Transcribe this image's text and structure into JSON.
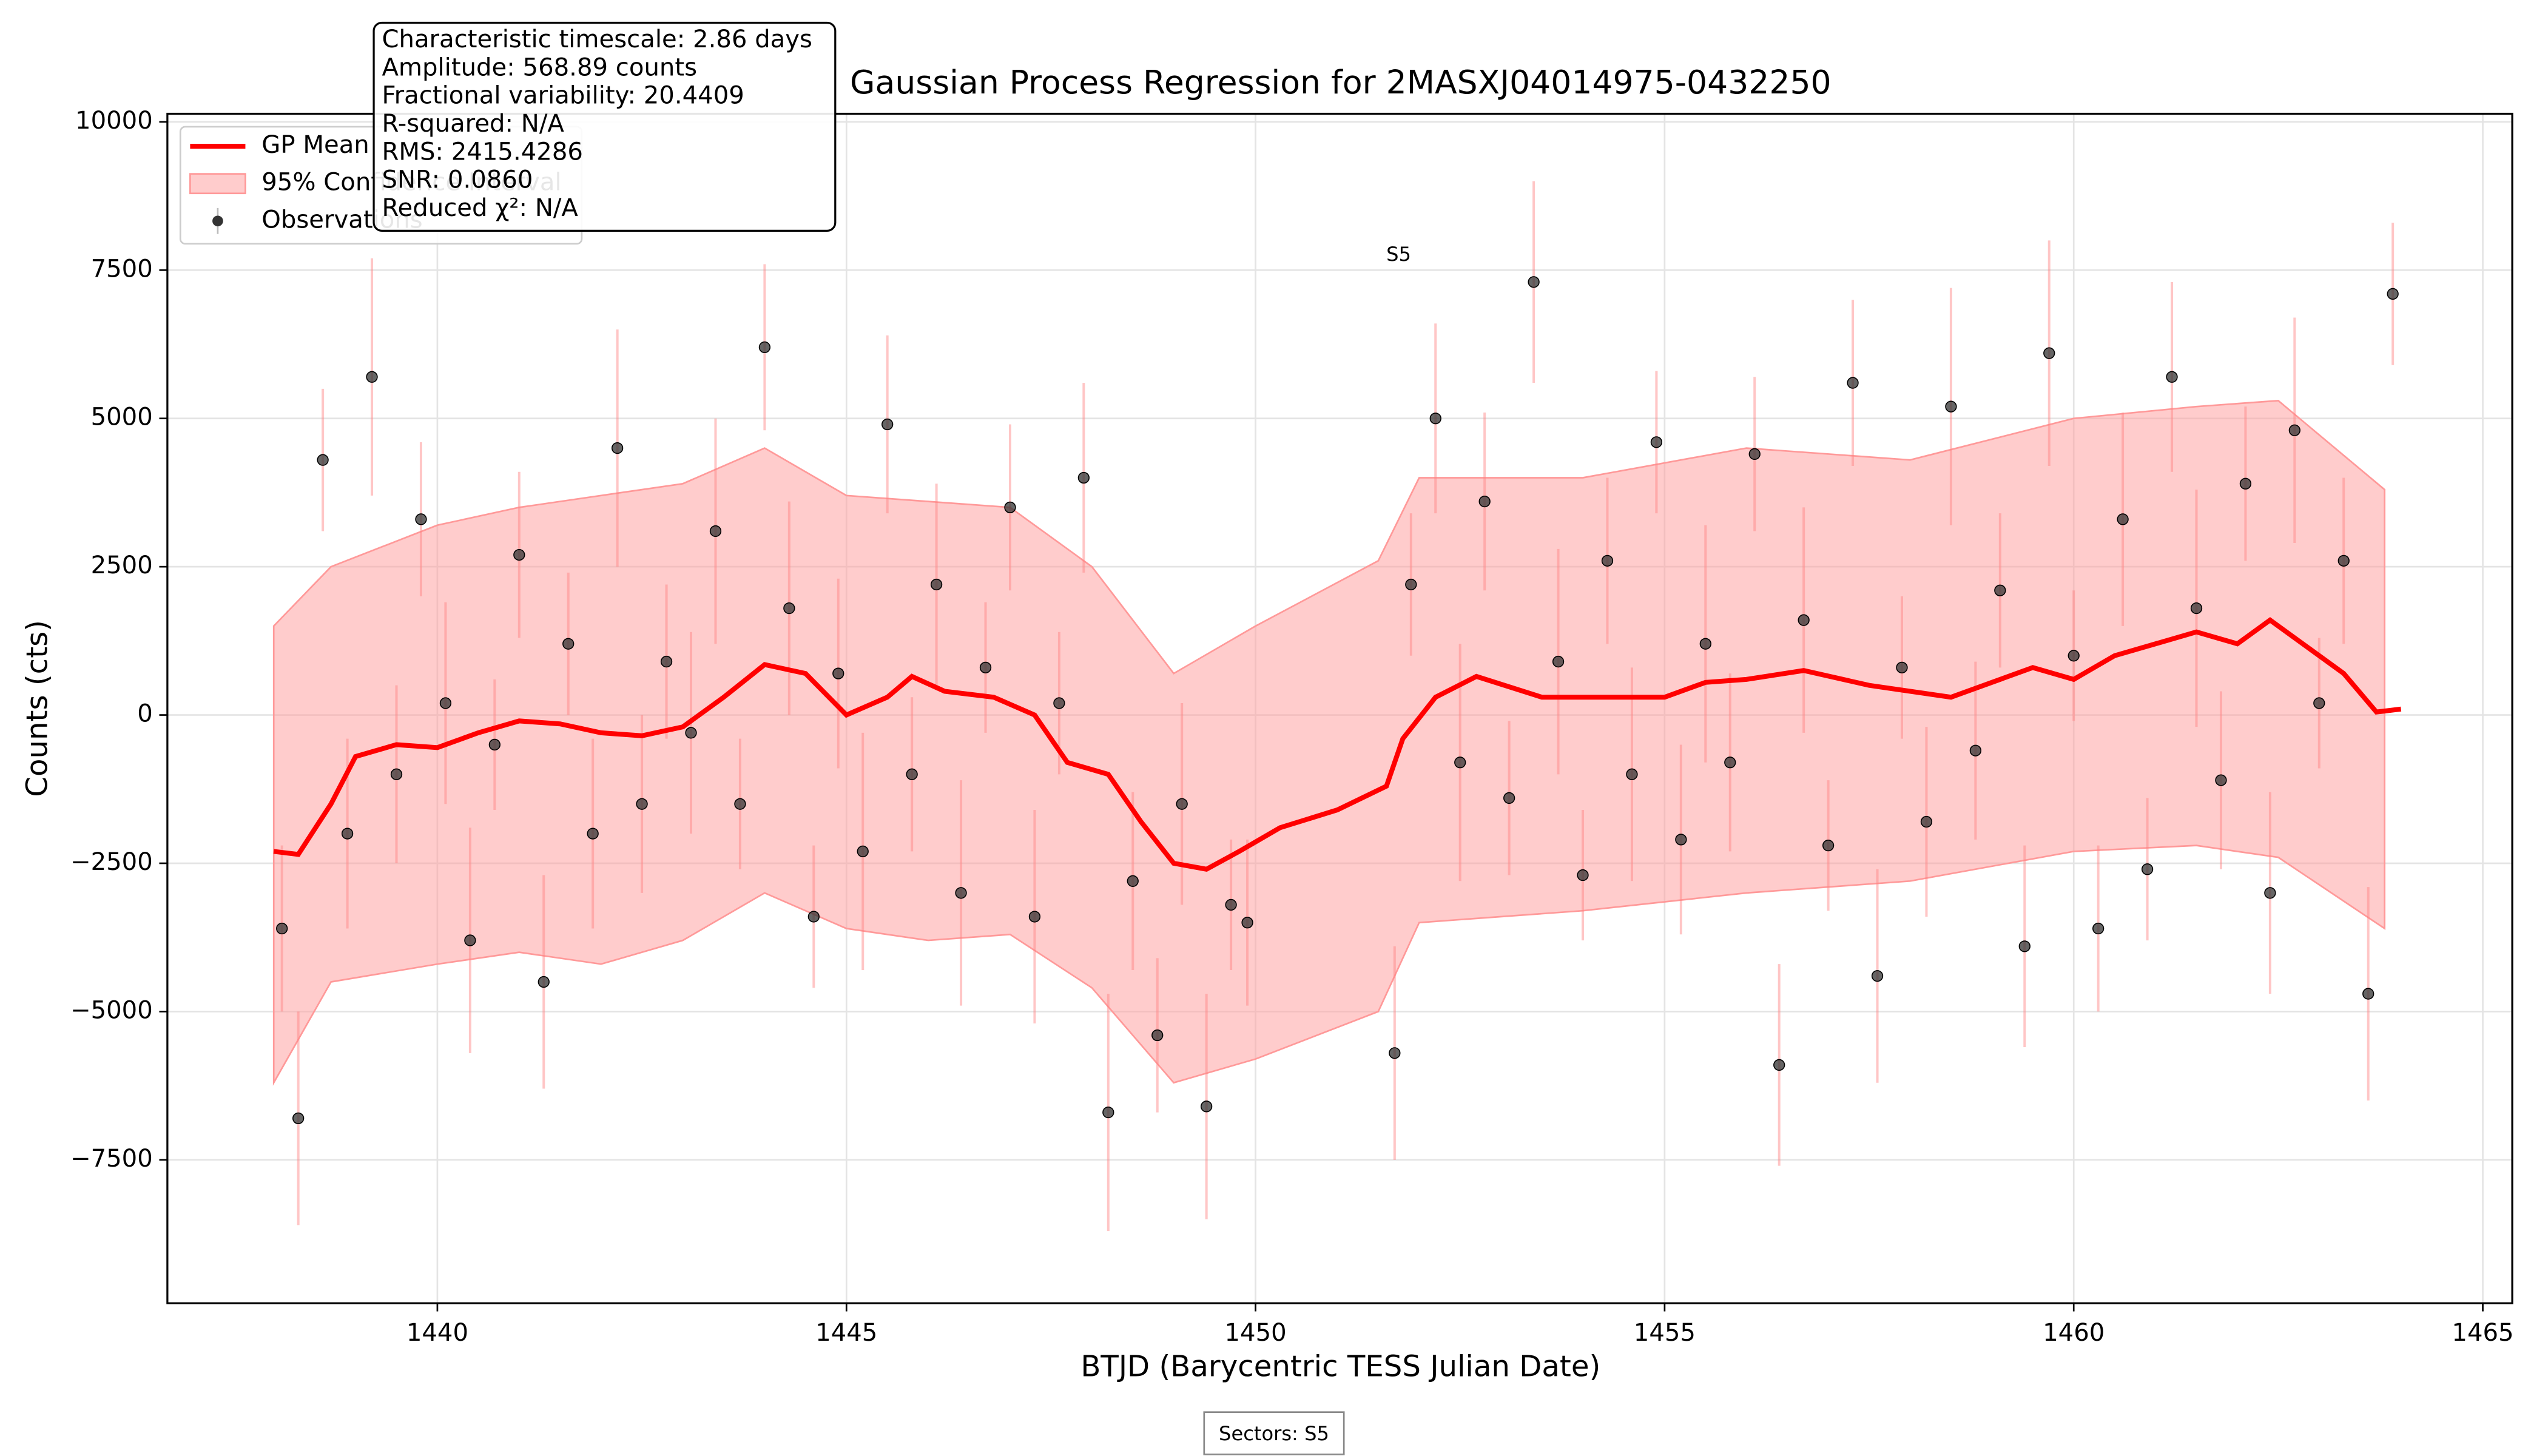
{
  "chart_data": {
    "type": "gp_regression",
    "title": "Gaussian Process Regression for 2MASXJ04014975-0432250",
    "xlabel": "BTJD (Barycentric TESS Julian Date)",
    "ylabel": "Counts (cts)",
    "xlim": [
      1436.7,
      1465.36
    ],
    "ylim": [
      -9918,
      10137
    ],
    "xticks": [
      1440,
      1445,
      1450,
      1455,
      1460,
      1465
    ],
    "yticks": [
      {
        "value": -7500,
        "label": "−7500"
      },
      {
        "value": -5000,
        "label": "−5000"
      },
      {
        "value": -2500,
        "label": "−2500"
      },
      0,
      2500,
      5000,
      7500,
      10000
    ],
    "grid": true,
    "legend_loc": "upper left",
    "mean": {
      "name": "GP Mean",
      "color": "#ff0000",
      "x": [
        1438.0,
        1438.3,
        1438.7,
        1439.0,
        1439.5,
        1440.0,
        1440.5,
        1441.0,
        1441.5,
        1442.0,
        1442.5,
        1443.0,
        1443.5,
        1444.0,
        1444.5,
        1445.0,
        1445.5,
        1445.8,
        1446.2,
        1446.8,
        1447.3,
        1447.7,
        1448.2,
        1448.6,
        1449.0,
        1449.4,
        1449.8,
        1450.3,
        1451.0,
        1451.6,
        1451.8,
        1452.2,
        1452.7,
        1453.5,
        1454.0,
        1455.0,
        1455.5,
        1456.0,
        1456.7,
        1457.5,
        1458.5,
        1459.5,
        1460.0,
        1460.5,
        1461.0,
        1461.5,
        1462.0,
        1462.4,
        1462.8,
        1463.3,
        1463.7,
        1464.0
      ],
      "y": [
        -2300,
        -2350,
        -1500,
        -700,
        -500,
        -550,
        -300,
        -100,
        -150,
        -300,
        -350,
        -200,
        300,
        850,
        700,
        0,
        300,
        650,
        400,
        300,
        0,
        -800,
        -1000,
        -1800,
        -2500,
        -2600,
        -2300,
        -1900,
        -1600,
        -1200,
        -400,
        300,
        650,
        300,
        300,
        300,
        550,
        600,
        750,
        500,
        300,
        800,
        600,
        1000,
        1200,
        1400,
        1200,
        1600,
        1200,
        700,
        50,
        100
      ]
    },
    "band": {
      "name": "95% Confidence Interval",
      "color": "#ff9999",
      "x": [
        1438.0,
        1438.7,
        1440.0,
        1441.0,
        1442.0,
        1443.0,
        1444.0,
        1445.0,
        1446.0,
        1447.0,
        1448.0,
        1449.0,
        1450.0,
        1451.5,
        1452.0,
        1454.0,
        1456.0,
        1458.0,
        1460.0,
        1461.5,
        1462.5,
        1463.8
      ],
      "upper": [
        1500,
        2500,
        3200,
        3500,
        3700,
        3900,
        4500,
        3700,
        3600,
        3500,
        2500,
        700,
        1500,
        2600,
        4000,
        4000,
        4500,
        4300,
        5000,
        5200,
        5300,
        3800
      ],
      "lower": [
        -6200,
        -4500,
        -4200,
        -4000,
        -4200,
        -3800,
        -3000,
        -3600,
        -3800,
        -3700,
        -4600,
        -6200,
        -5800,
        -5000,
        -3500,
        -3300,
        -3000,
        -2800,
        -2300,
        -2200,
        -2400,
        -3600
      ]
    },
    "observations": {
      "name": "Observations",
      "color": "#333333",
      "x": [
        1438.1,
        1438.3,
        1438.6,
        1438.9,
        1439.2,
        1439.5,
        1439.8,
        1440.1,
        1440.4,
        1440.7,
        1441.0,
        1441.3,
        1441.6,
        1441.9,
        1442.2,
        1442.5,
        1442.8,
        1443.1,
        1443.4,
        1443.7,
        1444.0,
        1444.3,
        1444.6,
        1444.9,
        1445.2,
        1445.5,
        1445.8,
        1446.1,
        1446.4,
        1446.7,
        1447.0,
        1447.3,
        1447.6,
        1447.9,
        1448.2,
        1448.5,
        1448.8,
        1449.1,
        1449.4,
        1449.7,
        1449.9,
        1451.7,
        1451.9,
        1452.2,
        1452.5,
        1452.8,
        1453.1,
        1453.4,
        1453.7,
        1454.0,
        1454.3,
        1454.6,
        1454.9,
        1455.2,
        1455.5,
        1455.8,
        1456.1,
        1456.4,
        1456.7,
        1457.0,
        1457.3,
        1457.6,
        1457.9,
        1458.2,
        1458.5,
        1458.8,
        1459.1,
        1459.4,
        1459.7,
        1460.0,
        1460.3,
        1460.6,
        1460.9,
        1461.2,
        1461.5,
        1461.8,
        1462.1,
        1462.4,
        1462.7,
        1463.0,
        1463.3,
        1463.6,
        1463.9
      ],
      "y": [
        -3600,
        -6800,
        4300,
        -2000,
        5700,
        -1000,
        3300,
        200,
        -3800,
        -500,
        2700,
        -4500,
        1200,
        -2000,
        4500,
        -1500,
        900,
        -300,
        3100,
        -1500,
        6200,
        1800,
        -3400,
        700,
        -2300,
        4900,
        -1000,
        2200,
        -3000,
        800,
        3500,
        -3400,
        200,
        4000,
        -6700,
        -2800,
        -5400,
        -1500,
        -6600,
        -3200,
        -3500,
        -5700,
        2200,
        5000,
        -800,
        3600,
        -1400,
        7300,
        900,
        -2700,
        2600,
        -1000,
        4600,
        -2100,
        1200,
        -800,
        4400,
        -5900,
        1600,
        -2200,
        5600,
        -4400,
        800,
        -1800,
        5200,
        -600,
        2100,
        -3900,
        6100,
        1000,
        -3600,
        3300,
        -2600,
        5700,
        1800,
        -1100,
        3900,
        -3000,
        4800,
        200,
        2600,
        -4700,
        7100
      ],
      "errors": [
        1400,
        1800,
        1200,
        1600,
        2000,
        1500,
        1300,
        1700,
        1900,
        1100,
        1400,
        1800,
        1200,
        1600,
        2000,
        1500,
        1300,
        1700,
        1900,
        1100,
        1400,
        1800,
        1200,
        1600,
        2000,
        1500,
        1300,
        1700,
        1900,
        1100,
        1400,
        1800,
        1200,
        1600,
        2000,
        1500,
        1300,
        1700,
        1900,
        1100,
        1400,
        1800,
        1200,
        1600,
        2000,
        1500,
        1300,
        1700,
        1900,
        1100,
        1400,
        1800,
        1200,
        1600,
        2000,
        1500,
        1300,
        1700,
        1900,
        1100,
        1400,
        1800,
        1200,
        1600,
        2000,
        1500,
        1300,
        1700,
        1900,
        1100,
        1400,
        1800,
        1200,
        1600,
        2000,
        1500,
        1300,
        1700,
        1900,
        1100,
        1400,
        1800,
        1200
      ]
    },
    "annotations": [
      {
        "text": "S5",
        "x": 1451.75,
        "y": 7750
      }
    ],
    "stats_box": [
      "Characteristic timescale: 2.86 days",
      "Amplitude: 568.89 counts",
      "Fractional variability: 20.4409",
      "R-squared: N/A",
      "RMS: 2415.4286",
      "SNR: 0.0860",
      "Reduced χ²: N/A"
    ],
    "footer": "Sectors: S5"
  }
}
